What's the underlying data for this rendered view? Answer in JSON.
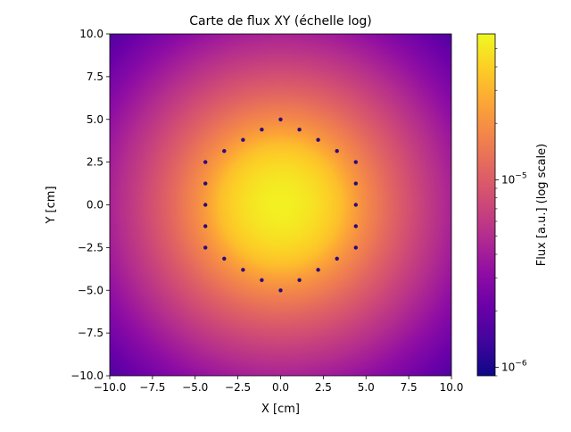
{
  "chart_data": {
    "type": "heatmap",
    "title": "Carte de flux XY (échelle log)",
    "xlabel": "X [cm]",
    "ylabel": "Y [cm]",
    "xlim": [
      -10,
      10
    ],
    "ylim": [
      -10,
      10
    ],
    "xticks": [
      -10,
      -7.5,
      -5,
      -2.5,
      0,
      2.5,
      5,
      7.5,
      10
    ],
    "yticks": [
      -10,
      -7.5,
      -5,
      -2.5,
      0,
      2.5,
      5,
      7.5,
      10
    ],
    "xtick_labels": [
      "−10.0",
      "−7.5",
      "−5.0",
      "−2.5",
      "0.0",
      "2.5",
      "5.0",
      "7.5",
      "10.0"
    ],
    "ytick_labels": [
      "−10.0",
      "−7.5",
      "−5.0",
      "−2.5",
      "0.0",
      "2.5",
      "5.0",
      "7.5",
      "10.0"
    ],
    "colormap": "plasma",
    "colorbar": {
      "label": "Flux [a.u.] (log scale)",
      "scale": "log",
      "range": [
        9e-07,
        6e-05
      ],
      "ticks": [
        {
          "value": 1e-06,
          "label": "10",
          "exp": "−6"
        },
        {
          "value": 1e-05,
          "label": "10",
          "exp": "−5"
        }
      ]
    },
    "field": {
      "peak_flux": 5.5e-05,
      "core_radius": 3.8,
      "outer_radius": 7.5,
      "edge_flux": 1.6e-06
    },
    "sources": {
      "marker_color": "#2a0a7a",
      "points": [
        [
          0.0,
          5.0
        ],
        [
          1.1,
          4.4
        ],
        [
          2.2,
          3.8
        ],
        [
          3.3,
          3.15
        ],
        [
          4.4,
          2.5
        ],
        [
          4.4,
          1.25
        ],
        [
          4.4,
          0.0
        ],
        [
          4.4,
          -1.25
        ],
        [
          4.4,
          -2.5
        ],
        [
          3.3,
          -3.15
        ],
        [
          2.2,
          -3.8
        ],
        [
          1.1,
          -4.4
        ],
        [
          0.0,
          -5.0
        ],
        [
          -1.1,
          -4.4
        ],
        [
          -2.2,
          -3.8
        ],
        [
          -3.3,
          -3.15
        ],
        [
          -4.4,
          -2.5
        ],
        [
          -4.4,
          -1.25
        ],
        [
          -4.4,
          0.0
        ],
        [
          -4.4,
          1.25
        ],
        [
          -4.4,
          2.5
        ],
        [
          -3.3,
          3.15
        ],
        [
          -2.2,
          3.8
        ],
        [
          -1.1,
          4.4
        ]
      ]
    }
  }
}
